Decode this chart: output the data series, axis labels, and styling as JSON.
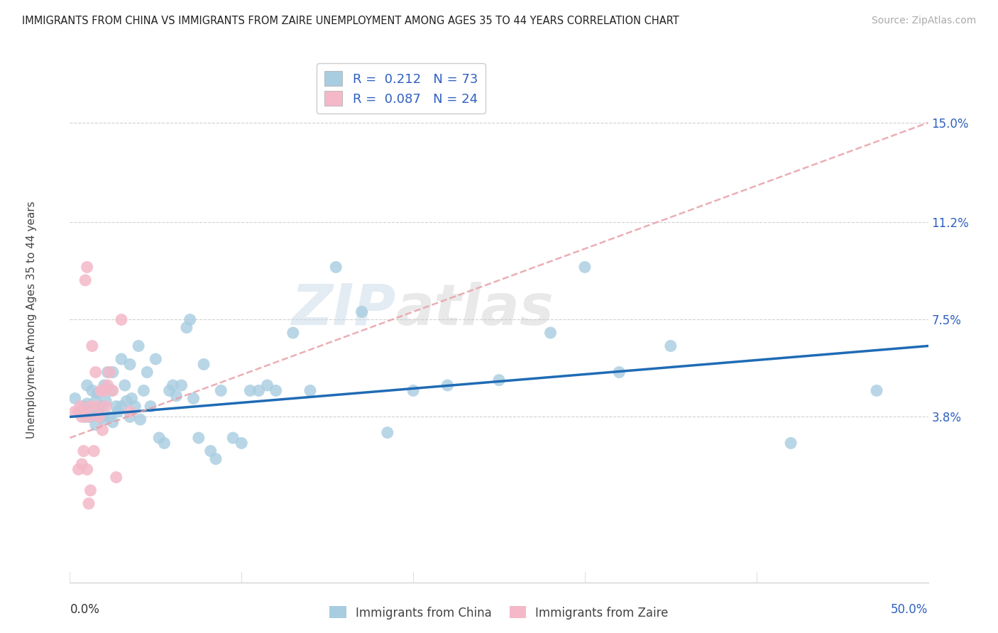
{
  "title": "IMMIGRANTS FROM CHINA VS IMMIGRANTS FROM ZAIRE UNEMPLOYMENT AMONG AGES 35 TO 44 YEARS CORRELATION CHART",
  "source": "Source: ZipAtlas.com",
  "ylabel": "Unemployment Among Ages 35 to 44 years",
  "ytick_labels": [
    "3.8%",
    "7.5%",
    "11.2%",
    "15.0%"
  ],
  "ytick_values": [
    0.038,
    0.075,
    0.112,
    0.15
  ],
  "xlim": [
    0.0,
    0.5
  ],
  "ylim": [
    -0.025,
    0.175
  ],
  "china_R": "0.212",
  "china_N": "73",
  "zaire_R": "0.087",
  "zaire_N": "24",
  "china_color": "#a8cce0",
  "zaire_color": "#f4b8c8",
  "china_line_color": "#1f6bb5",
  "zaire_line_color": "#e8a0a8",
  "watermark_zip": "ZIP",
  "watermark_atlas": "atlas",
  "china_scatter_x": [
    0.003,
    0.006,
    0.008,
    0.009,
    0.01,
    0.01,
    0.012,
    0.013,
    0.014,
    0.015,
    0.015,
    0.016,
    0.017,
    0.018,
    0.019,
    0.02,
    0.02,
    0.021,
    0.022,
    0.023,
    0.024,
    0.025,
    0.025,
    0.027,
    0.028,
    0.03,
    0.03,
    0.032,
    0.033,
    0.035,
    0.035,
    0.036,
    0.038,
    0.04,
    0.041,
    0.043,
    0.045,
    0.047,
    0.05,
    0.052,
    0.055,
    0.058,
    0.06,
    0.062,
    0.065,
    0.068,
    0.07,
    0.072,
    0.075,
    0.078,
    0.082,
    0.085,
    0.088,
    0.095,
    0.1,
    0.105,
    0.11,
    0.115,
    0.12,
    0.13,
    0.14,
    0.155,
    0.17,
    0.185,
    0.2,
    0.22,
    0.25,
    0.28,
    0.3,
    0.32,
    0.35,
    0.42,
    0.47
  ],
  "china_scatter_y": [
    0.045,
    0.04,
    0.042,
    0.038,
    0.05,
    0.043,
    0.038,
    0.048,
    0.04,
    0.044,
    0.035,
    0.047,
    0.041,
    0.038,
    0.042,
    0.05,
    0.037,
    0.044,
    0.055,
    0.038,
    0.048,
    0.055,
    0.036,
    0.042,
    0.04,
    0.06,
    0.042,
    0.05,
    0.044,
    0.058,
    0.038,
    0.045,
    0.042,
    0.065,
    0.037,
    0.048,
    0.055,
    0.042,
    0.06,
    0.03,
    0.028,
    0.048,
    0.05,
    0.046,
    0.05,
    0.072,
    0.075,
    0.045,
    0.03,
    0.058,
    0.025,
    0.022,
    0.048,
    0.03,
    0.028,
    0.048,
    0.048,
    0.05,
    0.048,
    0.07,
    0.048,
    0.095,
    0.078,
    0.032,
    0.048,
    0.05,
    0.052,
    0.07,
    0.095,
    0.055,
    0.065,
    0.028,
    0.048
  ],
  "zaire_scatter_x": [
    0.003,
    0.005,
    0.006,
    0.007,
    0.008,
    0.009,
    0.01,
    0.011,
    0.012,
    0.013,
    0.014,
    0.015,
    0.016,
    0.017,
    0.018,
    0.019,
    0.02,
    0.021,
    0.022,
    0.023,
    0.025,
    0.027,
    0.03,
    0.035
  ],
  "zaire_scatter_y": [
    0.04,
    0.04,
    0.042,
    0.038,
    0.04,
    0.09,
    0.095,
    0.038,
    0.042,
    0.065,
    0.025,
    0.055,
    0.042,
    0.038,
    0.048,
    0.033,
    0.048,
    0.042,
    0.05,
    0.055,
    0.048,
    0.015,
    0.075,
    0.04
  ],
  "zaire_extra_low_x": [
    0.005,
    0.007,
    0.008,
    0.01,
    0.011,
    0.012
  ],
  "zaire_extra_low_y": [
    0.018,
    0.02,
    0.025,
    0.018,
    0.005,
    0.01
  ]
}
